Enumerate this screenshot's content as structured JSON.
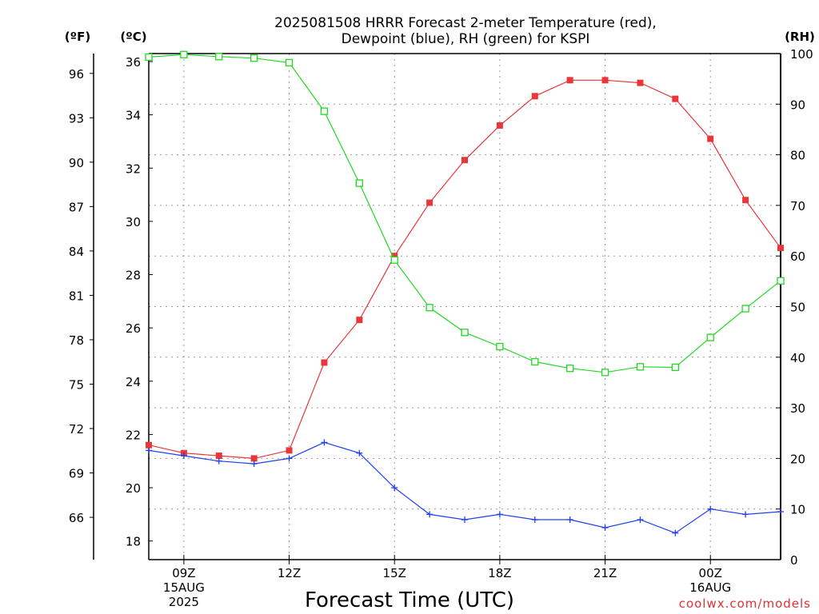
{
  "chart_data": {
    "type": "line",
    "title_line1": "2025081508 HRRR Forecast 2-meter Temperature (red),",
    "title_line2": "Dewpoint (blue), RH (green) for KSPI",
    "xlabel": "Forecast Time (UTC)",
    "credit": "coolwx.com/models",
    "left_outer_axis": {
      "unit": "(ºF)",
      "ticks": [
        96,
        93,
        90,
        87,
        84,
        81,
        78,
        75,
        72,
        69,
        66
      ]
    },
    "left_axis": {
      "unit": "(ºC)",
      "ylim": [
        17.3,
        36.3
      ],
      "ticks": [
        36,
        34,
        32,
        30,
        28,
        26,
        24,
        22,
        20,
        18
      ]
    },
    "right_axis": {
      "unit": "(RH)",
      "ylim": [
        0,
        100
      ],
      "ticks": [
        100,
        90,
        80,
        70,
        60,
        50,
        40,
        30,
        20,
        10,
        0
      ]
    },
    "x_hours": [
      8,
      9,
      10,
      11,
      12,
      13,
      14,
      15,
      16,
      17,
      18,
      19,
      20,
      21,
      22,
      23,
      24,
      25,
      26
    ],
    "xlim": [
      8,
      26
    ],
    "x_ticks": [
      {
        "hour": 9,
        "label": "09Z",
        "sub1": "15AUG",
        "sub2": "2025"
      },
      {
        "hour": 12,
        "label": "12Z",
        "sub1": "",
        "sub2": ""
      },
      {
        "hour": 15,
        "label": "15Z",
        "sub1": "",
        "sub2": ""
      },
      {
        "hour": 18,
        "label": "18Z",
        "sub1": "",
        "sub2": ""
      },
      {
        "hour": 21,
        "label": "21Z",
        "sub1": "",
        "sub2": ""
      },
      {
        "hour": 24,
        "label": "00Z",
        "sub1": "16AUG",
        "sub2": ""
      }
    ],
    "grid": true,
    "series": [
      {
        "name": "Temperature",
        "color": "#e8363a",
        "axis": "celsius",
        "marker": "filled-square",
        "values": [
          21.6,
          21.3,
          21.2,
          21.1,
          21.4,
          24.7,
          26.3,
          28.7,
          30.7,
          32.3,
          33.6,
          34.7,
          35.3,
          35.3,
          35.2,
          34.6,
          33.1,
          30.8,
          29.0
        ]
      },
      {
        "name": "Dewpoint",
        "color": "#2040f0",
        "axis": "celsius",
        "marker": "plus",
        "values": [
          21.4,
          21.2,
          21.0,
          20.9,
          21.1,
          21.7,
          21.3,
          20.0,
          19.0,
          18.8,
          19.0,
          18.8,
          18.8,
          18.5,
          18.8,
          18.3,
          19.2,
          19.0,
          19.1
        ]
      },
      {
        "name": "RH",
        "color": "#22d822",
        "axis": "rh",
        "marker": "open-square",
        "values": [
          99.3,
          99.8,
          99.4,
          99.1,
          98.2,
          88.6,
          74.4,
          59.2,
          49.8,
          44.9,
          42.1,
          39.1,
          37.8,
          37.0,
          38.1,
          38.0,
          43.9,
          49.6,
          55.1
        ]
      }
    ]
  }
}
